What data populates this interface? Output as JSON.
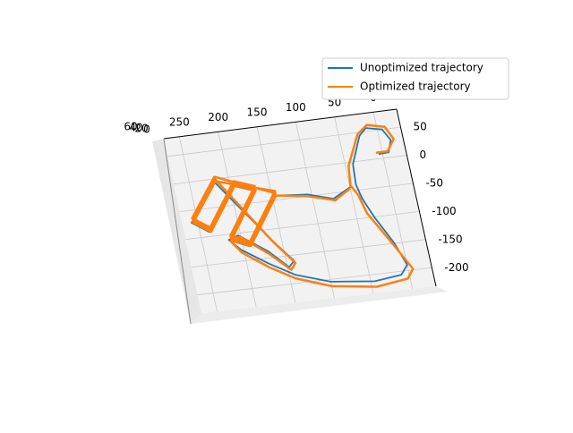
{
  "chart_data": {
    "type": "line3d",
    "xlim": [
      270,
      -30
    ],
    "ylim": [
      82,
      -233
    ],
    "xticks": [
      250,
      200,
      150,
      100,
      50,
      0
    ],
    "yticks": [
      50,
      0,
      -50,
      -100,
      -150,
      -200
    ],
    "zticks": [
      0,
      20,
      40,
      60
    ],
    "grid": true,
    "legend": "upper right",
    "series": [
      {
        "name": "Unoptimized trajectory",
        "color": "#1f77b4",
        "x": [
          5,
          -8,
          -14,
          -6,
          14,
          24,
          40,
          42,
          38,
          28,
          10,
          0,
          10,
          45,
          100,
          142,
          172,
          203,
          216,
          203,
          170,
          148,
          140,
          162,
          219,
          258,
          238,
          196,
          171,
          215,
          192,
          147,
          105,
          74,
          48
        ],
        "values": [
          8,
          9,
          30,
          50,
          56,
          44,
          -4,
          -40,
          -65,
          -100,
          -150,
          -190,
          -206,
          -212,
          -204,
          -185,
          -160,
          -130,
          -110,
          -104,
          -138,
          -170,
          -160,
          -120,
          -4,
          -72,
          -92,
          -16,
          -29,
          -111,
          -125,
          -42,
          -47,
          -60,
          -42
        ]
      },
      {
        "name": "Optimized trajectory",
        "color": "#ff7f0e",
        "x": [
          8,
          -7,
          -18,
          -10,
          12,
          26,
          46,
          49,
          42,
          36,
          11,
          -6,
          3,
          44,
          100,
          143,
          173,
          203,
          214,
          201,
          170,
          146,
          139,
          161,
          217,
          256,
          236,
          194,
          169,
          213,
          190,
          145,
          217,
          256,
          236,
          194,
          169,
          213,
          190,
          145,
          217,
          256,
          236,
          194,
          169,
          213,
          190,
          145,
          105,
          72,
          50
        ],
        "values": [
          11,
          11,
          31,
          54,
          61,
          47,
          -6,
          -40,
          -58,
          -92,
          -154,
          -198,
          -214,
          -222,
          -212,
          -191,
          -166,
          -135,
          -113,
          -107,
          -142,
          -175,
          -164,
          -123,
          0,
          -68,
          -88,
          -12,
          -25,
          -107,
          -121,
          -38,
          4,
          -64,
          -84,
          -8,
          -21,
          -103,
          -117,
          -34,
          -4,
          -72,
          -92,
          -16,
          -29,
          -111,
          -125,
          -42,
          -50,
          -63,
          -45
        ]
      }
    ]
  }
}
